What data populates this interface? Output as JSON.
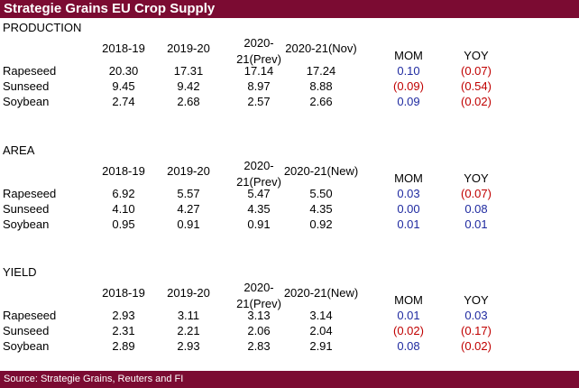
{
  "title": "Strategie Grains EU Crop Supply",
  "footer": "Source: Strategie Grains, Reuters and FI",
  "colors": {
    "bar": "#7b0b32",
    "positive": "#1f2aa0",
    "negative": "#c00000"
  },
  "sections": [
    {
      "label": "PRODUCTION",
      "headers": [
        "2018-19",
        "2019-20",
        "2020-21(Prev)",
        "2020-21(Nov)",
        "MOM",
        "YOY"
      ],
      "headers_display": [
        "2018-19",
        "2019-20",
        "2020-\n21(Prev)",
        "2020-21(Nov)",
        "MOM",
        "YOY"
      ],
      "rows": [
        {
          "name": "Rapeseed",
          "values": [
            "20.30",
            "17.31",
            "17.14",
            "17.24"
          ],
          "mom": "0.10",
          "yoy": "(0.07)"
        },
        {
          "name": "Sunseed",
          "values": [
            "9.45",
            "9.42",
            "8.97",
            "8.88"
          ],
          "mom": "(0.09)",
          "yoy": "(0.54)"
        },
        {
          "name": "Soybean",
          "values": [
            "2.74",
            "2.68",
            "2.57",
            "2.66"
          ],
          "mom": "0.09",
          "yoy": "(0.02)"
        }
      ]
    },
    {
      "label": "AREA",
      "headers": [
        "2018-19",
        "2019-20",
        "2020-21(Prev)",
        "2020-21(New)",
        "MOM",
        "YOY"
      ],
      "headers_display": [
        "2018-19",
        "2019-20",
        "2020-\n21(Prev)",
        "2020-21(New)",
        "MOM",
        "YOY"
      ],
      "rows": [
        {
          "name": "Rapeseed",
          "values": [
            "6.92",
            "5.57",
            "5.47",
            "5.50"
          ],
          "mom": "0.03",
          "yoy": "(0.07)"
        },
        {
          "name": "Sunseed",
          "values": [
            "4.10",
            "4.27",
            "4.35",
            "4.35"
          ],
          "mom": "0.00",
          "yoy": "0.08"
        },
        {
          "name": "Soybean",
          "values": [
            "0.95",
            "0.91",
            "0.91",
            "0.92"
          ],
          "mom": "0.01",
          "yoy": "0.01"
        }
      ]
    },
    {
      "label": "YIELD",
      "headers": [
        "2018-19",
        "2019-20",
        "2020-21(Prev)",
        "2020-21(New)",
        "MOM",
        "YOY"
      ],
      "headers_display": [
        "2018-19",
        "2019-20",
        "2020-\n21(Prev)",
        "2020-21(New)",
        "MOM",
        "YOY"
      ],
      "rows": [
        {
          "name": "Rapeseed",
          "values": [
            "2.93",
            "3.11",
            "3.13",
            "3.14"
          ],
          "mom": "0.01",
          "yoy": "0.03"
        },
        {
          "name": "Sunseed",
          "values": [
            "2.31",
            "2.21",
            "2.06",
            "2.04"
          ],
          "mom": "(0.02)",
          "yoy": "(0.17)"
        },
        {
          "name": "Soybean",
          "values": [
            "2.89",
            "2.93",
            "2.83",
            "2.91"
          ],
          "mom": "0.08",
          "yoy": "(0.02)"
        }
      ]
    }
  ]
}
